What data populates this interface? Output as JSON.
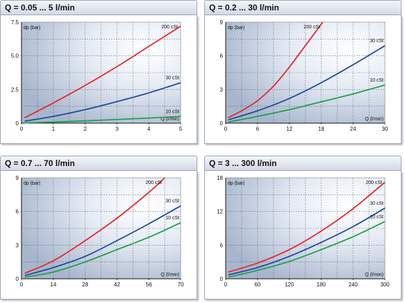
{
  "chart_data": [
    {
      "type": "line",
      "title": "Q = 0.05 ... 5 l/min",
      "ylabel": "dp (bar)",
      "xlabel": "Q (l/min)",
      "xlim": [
        0,
        5
      ],
      "ylim": [
        0,
        7.5
      ],
      "xticks": [
        0,
        1,
        2,
        3,
        4,
        5
      ],
      "yticks": [
        0,
        2.5,
        5.0,
        7.5
      ],
      "ytick_labels": [
        "0",
        "2.5",
        "5.0",
        "7.5"
      ],
      "xtick_labels": [
        "0",
        "1",
        "2",
        "3",
        "4",
        "5"
      ],
      "grid": true,
      "series": [
        {
          "name": "200 cSt",
          "color": "#e8262c",
          "x": [
            0.1,
            1,
            2,
            3,
            4,
            5
          ],
          "y": [
            0.4,
            1.5,
            2.8,
            4.2,
            5.7,
            7.2
          ]
        },
        {
          "name": "30 cSt",
          "color": "#1f4c9c",
          "x": [
            0.1,
            1,
            2,
            3,
            4,
            5
          ],
          "y": [
            0.15,
            0.5,
            1.0,
            1.6,
            2.25,
            3.0
          ]
        },
        {
          "name": "10 cSt",
          "color": "#1fa04a",
          "x": [
            0.1,
            1,
            2,
            3,
            4,
            5
          ],
          "y": [
            0.02,
            0.08,
            0.17,
            0.27,
            0.38,
            0.5
          ]
        }
      ]
    },
    {
      "type": "line",
      "title": "Q = 0.2 ... 30 l/min",
      "ylabel": "dp (bar)",
      "xlabel": "Q (l/min)",
      "xlim": [
        0,
        30
      ],
      "ylim": [
        0,
        9
      ],
      "xticks": [
        0,
        6,
        12,
        18,
        24,
        30
      ],
      "yticks": [
        0,
        3,
        6,
        9
      ],
      "ytick_labels": [
        "0",
        "3",
        "6",
        "9"
      ],
      "xtick_labels": [
        "0",
        "6",
        "12",
        "18",
        "24",
        "30"
      ],
      "grid": true,
      "series": [
        {
          "name": "200 cSt",
          "color": "#e8262c",
          "x": [
            0.5,
            3,
            6,
            9,
            12,
            15,
            18.3
          ],
          "y": [
            0.5,
            1.1,
            2.0,
            3.3,
            5.0,
            6.9,
            9.0
          ]
        },
        {
          "name": "30 cSt",
          "color": "#1f4c9c",
          "x": [
            0.5,
            6,
            12,
            18,
            24,
            30
          ],
          "y": [
            0.3,
            1.1,
            2.2,
            3.6,
            5.2,
            6.9
          ]
        },
        {
          "name": "10 cSt",
          "color": "#1fa04a",
          "x": [
            0.5,
            6,
            12,
            18,
            24,
            30
          ],
          "y": [
            0.1,
            0.6,
            1.2,
            1.9,
            2.6,
            3.4
          ]
        }
      ]
    },
    {
      "type": "line",
      "title": "Q = 0.7 ... 70 l/min",
      "ylabel": "dp (bar)",
      "xlabel": "Q (l/min)",
      "xlim": [
        0,
        70
      ],
      "ylim": [
        0,
        9
      ],
      "xticks": [
        0,
        14,
        28,
        42,
        56,
        70
      ],
      "yticks": [
        0,
        3,
        6,
        9
      ],
      "ytick_labels": [
        "0",
        "3",
        "6",
        "9"
      ],
      "xtick_labels": [
        "0",
        "14",
        "28",
        "42",
        "56",
        "70"
      ],
      "grid": true,
      "series": [
        {
          "name": "200 cSt",
          "color": "#e8262c",
          "x": [
            1.5,
            14,
            28,
            42,
            56,
            63
          ],
          "y": [
            0.5,
            1.6,
            3.4,
            5.4,
            7.7,
            9.0
          ]
        },
        {
          "name": "30 cSt",
          "color": "#1f4c9c",
          "x": [
            1.5,
            14,
            28,
            42,
            56,
            70
          ],
          "y": [
            0.3,
            1.0,
            2.0,
            3.4,
            4.9,
            6.5
          ]
        },
        {
          "name": "10 cSt",
          "color": "#1fa04a",
          "x": [
            1.5,
            14,
            28,
            42,
            56,
            70
          ],
          "y": [
            0.15,
            0.6,
            1.5,
            2.6,
            3.7,
            5.0
          ]
        }
      ]
    },
    {
      "type": "line",
      "title": "Q = 3 ... 300 l/min",
      "ylabel": "dp (bar)",
      "xlabel": "Q (l/min)",
      "xlim": [
        0,
        300
      ],
      "ylim": [
        0,
        18
      ],
      "xticks": [
        0,
        60,
        120,
        180,
        240,
        300
      ],
      "yticks": [
        0,
        6,
        12,
        18
      ],
      "ytick_labels": [
        "0",
        "6",
        "12",
        "18"
      ],
      "xtick_labels": [
        "0",
        "60",
        "120",
        "180",
        "240",
        "300"
      ],
      "grid": true,
      "series": [
        {
          "name": "200 cSt",
          "color": "#e8262c",
          "x": [
            5,
            60,
            120,
            180,
            240,
            300
          ],
          "y": [
            1.2,
            2.8,
            5.2,
            8.5,
            12.5,
            17.2
          ]
        },
        {
          "name": "30 cSt",
          "color": "#1f4c9c",
          "x": [
            5,
            60,
            120,
            180,
            240,
            300
          ],
          "y": [
            0.7,
            2.0,
            4.0,
            6.5,
            9.3,
            12.6
          ]
        },
        {
          "name": "10 cSt",
          "color": "#1fa04a",
          "x": [
            5,
            60,
            120,
            180,
            240,
            300
          ],
          "y": [
            0.3,
            1.5,
            3.1,
            5.2,
            7.5,
            10.2
          ]
        }
      ]
    }
  ]
}
